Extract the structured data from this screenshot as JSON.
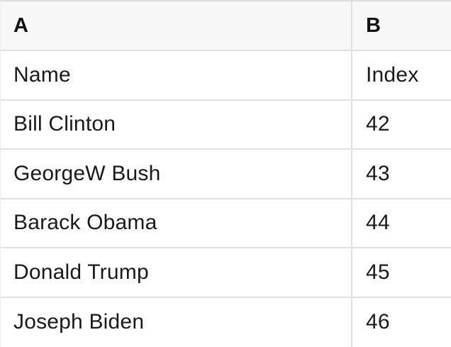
{
  "table": {
    "column_headers": [
      {
        "label": "A"
      },
      {
        "label": "B"
      }
    ],
    "rows": [
      {
        "a": "Name",
        "b": "Index"
      },
      {
        "a": "Bill Clinton",
        "b": "42"
      },
      {
        "a": "GeorgeW Bush",
        "b": "43"
      },
      {
        "a": "Barack Obama",
        "b": "44"
      },
      {
        "a": "Donald Trump",
        "b": "45"
      },
      {
        "a": "Joseph Biden",
        "b": "46"
      }
    ]
  },
  "colors": {
    "header_background": "#f7f7f7",
    "grid_line": "#e0e0e0",
    "top_border": "#dcdcdc",
    "text": "#1a1a1a",
    "body_background": "#ffffff"
  }
}
